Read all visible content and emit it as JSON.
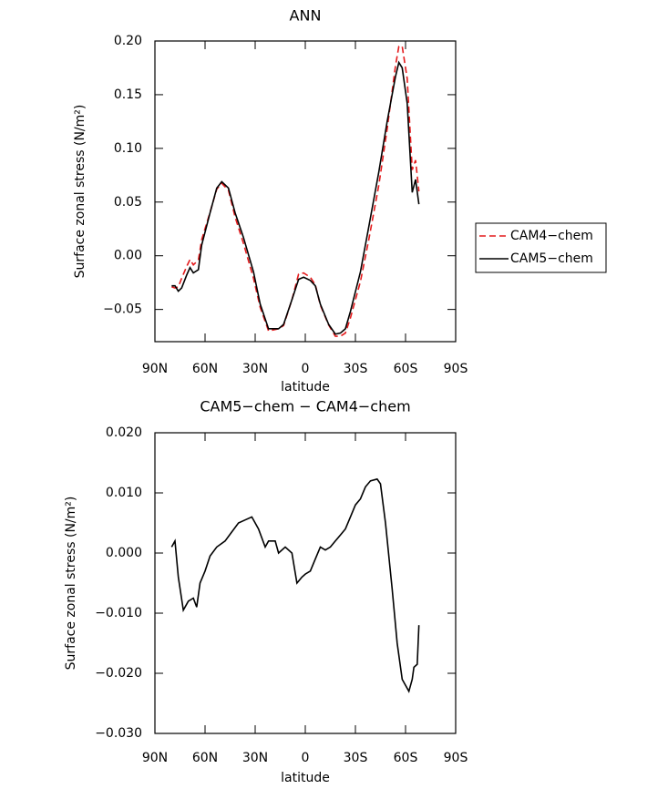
{
  "chart_data": [
    {
      "type": "line",
      "title": "ANN",
      "xlabel": "latitude",
      "ylabel": "Surface zonal stress (N/m²)",
      "xlim": [
        90,
        -90
      ],
      "xticks": [
        {
          "value": 90,
          "label": "90N"
        },
        {
          "value": 60,
          "label": "60N"
        },
        {
          "value": 30,
          "label": "30N"
        },
        0,
        {
          "value": -30,
          "label": "30S"
        },
        {
          "value": -60,
          "label": "60S"
        },
        {
          "value": -90,
          "label": "90S"
        }
      ],
      "ylim": [
        -0.08,
        0.2
      ],
      "yticks": [
        {
          "value": 0.2,
          "label": "0.20"
        },
        {
          "value": 0.15,
          "label": "0.15"
        },
        {
          "value": 0.1,
          "label": "0.10"
        },
        {
          "value": 0.05,
          "label": "0.05"
        },
        {
          "value": 0,
          "label": "0.00"
        },
        {
          "value": -0.05,
          "label": "−0.05"
        }
      ],
      "legend": "right",
      "x": [
        80,
        78,
        76,
        74,
        71,
        69,
        67,
        64,
        62,
        57,
        53,
        50,
        46,
        42,
        37,
        31,
        27,
        22,
        16,
        13,
        8,
        4,
        1,
        -3,
        -6,
        -9,
        -14,
        -18,
        -21,
        -24,
        -27,
        -33,
        -38,
        -44,
        -49,
        -54,
        -56,
        -58,
        -61,
        -64,
        -66,
        -68
      ],
      "series": [
        {
          "name": "CAM4−chem",
          "color": "#e41a1c",
          "dashed": true,
          "values": [
            -0.029,
            -0.03,
            -0.029,
            -0.021,
            -0.01,
            -0.0035,
            -0.0085,
            -0.004,
            0.015,
            0.0405,
            0.062,
            0.0675,
            0.061,
            0.036,
            0.0115,
            -0.021,
            -0.048,
            -0.07,
            -0.068,
            -0.065,
            -0.041,
            -0.017,
            -0.016,
            -0.02,
            -0.027,
            -0.046,
            -0.0645,
            -0.075,
            -0.075,
            -0.072,
            -0.058,
            -0.024,
            0.015,
            0.0657,
            0.118,
            0.177,
            0.195,
            0.195,
            0.165,
            0.08,
            0.089,
            0.06
          ]
        },
        {
          "name": "CAM5−chem",
          "color": "#000000",
          "dashed": false,
          "values": [
            -0.028,
            -0.028,
            -0.033,
            -0.03,
            -0.018,
            -0.011,
            -0.016,
            -0.013,
            0.01,
            0.04,
            0.063,
            0.069,
            0.063,
            0.04,
            0.017,
            -0.015,
            -0.045,
            -0.068,
            -0.068,
            -0.064,
            -0.041,
            -0.022,
            -0.02,
            -0.023,
            -0.028,
            -0.045,
            -0.064,
            -0.073,
            -0.072,
            -0.068,
            -0.052,
            -0.015,
            0.027,
            0.078,
            0.125,
            0.167,
            0.18,
            0.175,
            0.142,
            0.059,
            0.071,
            0.048
          ]
        }
      ]
    },
    {
      "type": "line",
      "title": "CAM5−chem − CAM4−chem",
      "xlabel": "latitude",
      "ylabel": "Surface zonal stress (N/m²)",
      "xlim": [
        90,
        -90
      ],
      "xticks": [
        {
          "value": 90,
          "label": "90N"
        },
        {
          "value": 60,
          "label": "60N"
        },
        {
          "value": 30,
          "label": "30N"
        },
        0,
        {
          "value": -30,
          "label": "30S"
        },
        {
          "value": -60,
          "label": "60S"
        },
        {
          "value": -90,
          "label": "90S"
        }
      ],
      "ylim": [
        -0.03,
        0.02
      ],
      "yticks": [
        {
          "value": 0.02,
          "label": "0.020"
        },
        {
          "value": 0.01,
          "label": "0.010"
        },
        {
          "value": 0,
          "label": "0.000"
        },
        {
          "value": -0.01,
          "label": "−0.010"
        },
        {
          "value": -0.02,
          "label": "−0.020"
        },
        {
          "value": -0.03,
          "label": "−0.030"
        }
      ],
      "x": [
        80,
        78,
        76,
        73,
        70,
        67,
        65,
        63,
        60,
        57,
        53,
        48,
        44,
        40,
        36,
        32,
        28,
        24,
        22,
        18,
        16,
        12,
        8,
        5,
        2,
        0,
        -3,
        -6,
        -9,
        -12,
        -15,
        -18,
        -21,
        -24,
        -27,
        -30,
        -33,
        -36,
        -39,
        -43,
        -45,
        -48,
        -52,
        -55,
        -58,
        -62,
        -64,
        -65,
        -67,
        -68
      ],
      "series": [
        {
          "color": "#000000",
          "dashed": false,
          "values": [
            0.001,
            0.002,
            -0.004,
            -0.0095,
            -0.008,
            -0.0075,
            -0.009,
            -0.005,
            -0.003,
            -0.0005,
            0.001,
            0.002,
            0.0035,
            0.005,
            0.0055,
            0.006,
            0.004,
            0.001,
            0.002,
            0.002,
            0,
            0.001,
            0,
            -0.005,
            -0.004,
            -0.0035,
            -0.003,
            -0.001,
            0.001,
            0.0005,
            0.001,
            0.002,
            0.003,
            0.004,
            0.006,
            0.008,
            0.009,
            0.011,
            0.012,
            0.0123,
            0.0115,
            0.005,
            -0.006,
            -0.015,
            -0.021,
            -0.023,
            -0.021,
            -0.019,
            -0.0185,
            -0.012
          ]
        }
      ]
    }
  ]
}
